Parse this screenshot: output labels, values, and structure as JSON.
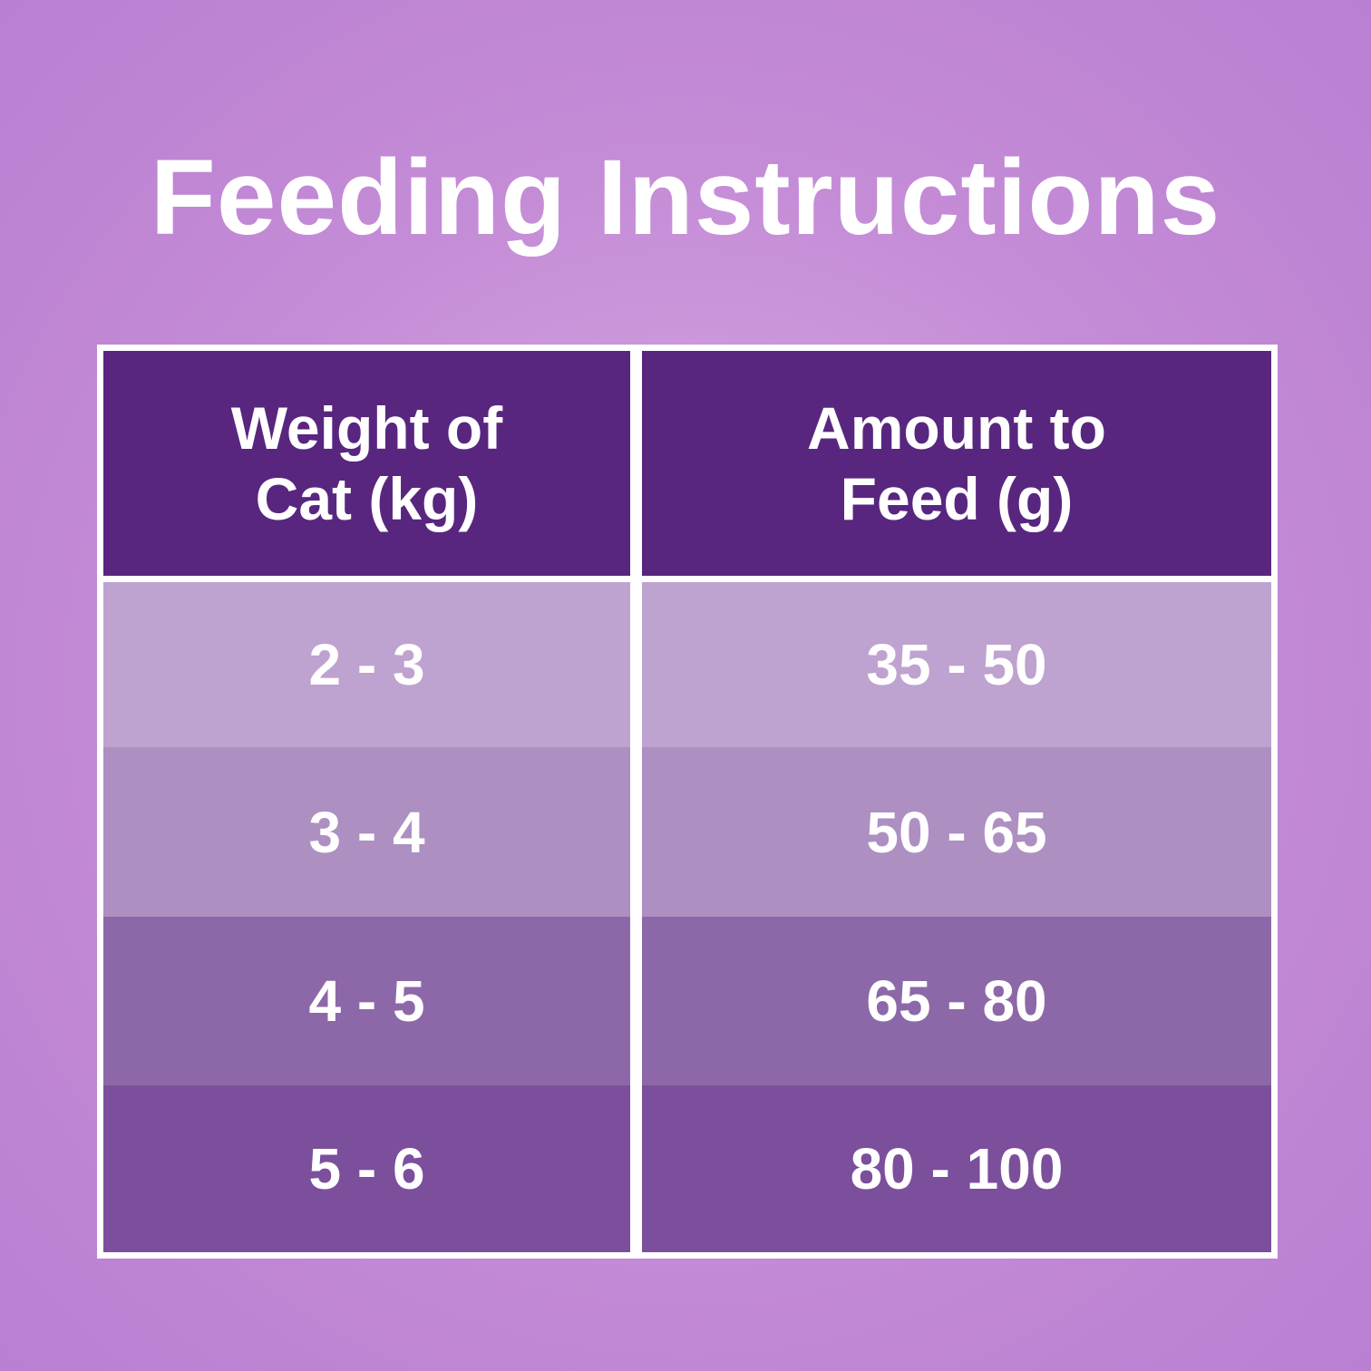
{
  "title": "Feeding Instructions",
  "table": {
    "headers": [
      "Weight of\nCat (kg)",
      "Amount to\nFeed (g)"
    ],
    "rows": [
      {
        "weight": "2 - 3",
        "amount": "35 - 50",
        "color": "#bea2cf"
      },
      {
        "weight": "3 - 4",
        "amount": "50 - 65",
        "color": "#ad8fc2"
      },
      {
        "weight": "4 - 5",
        "amount": "65 - 80",
        "color": "#8d68a8"
      },
      {
        "weight": "5 - 6",
        "amount": "80 - 100",
        "color": "#7b4f9b"
      }
    ]
  }
}
